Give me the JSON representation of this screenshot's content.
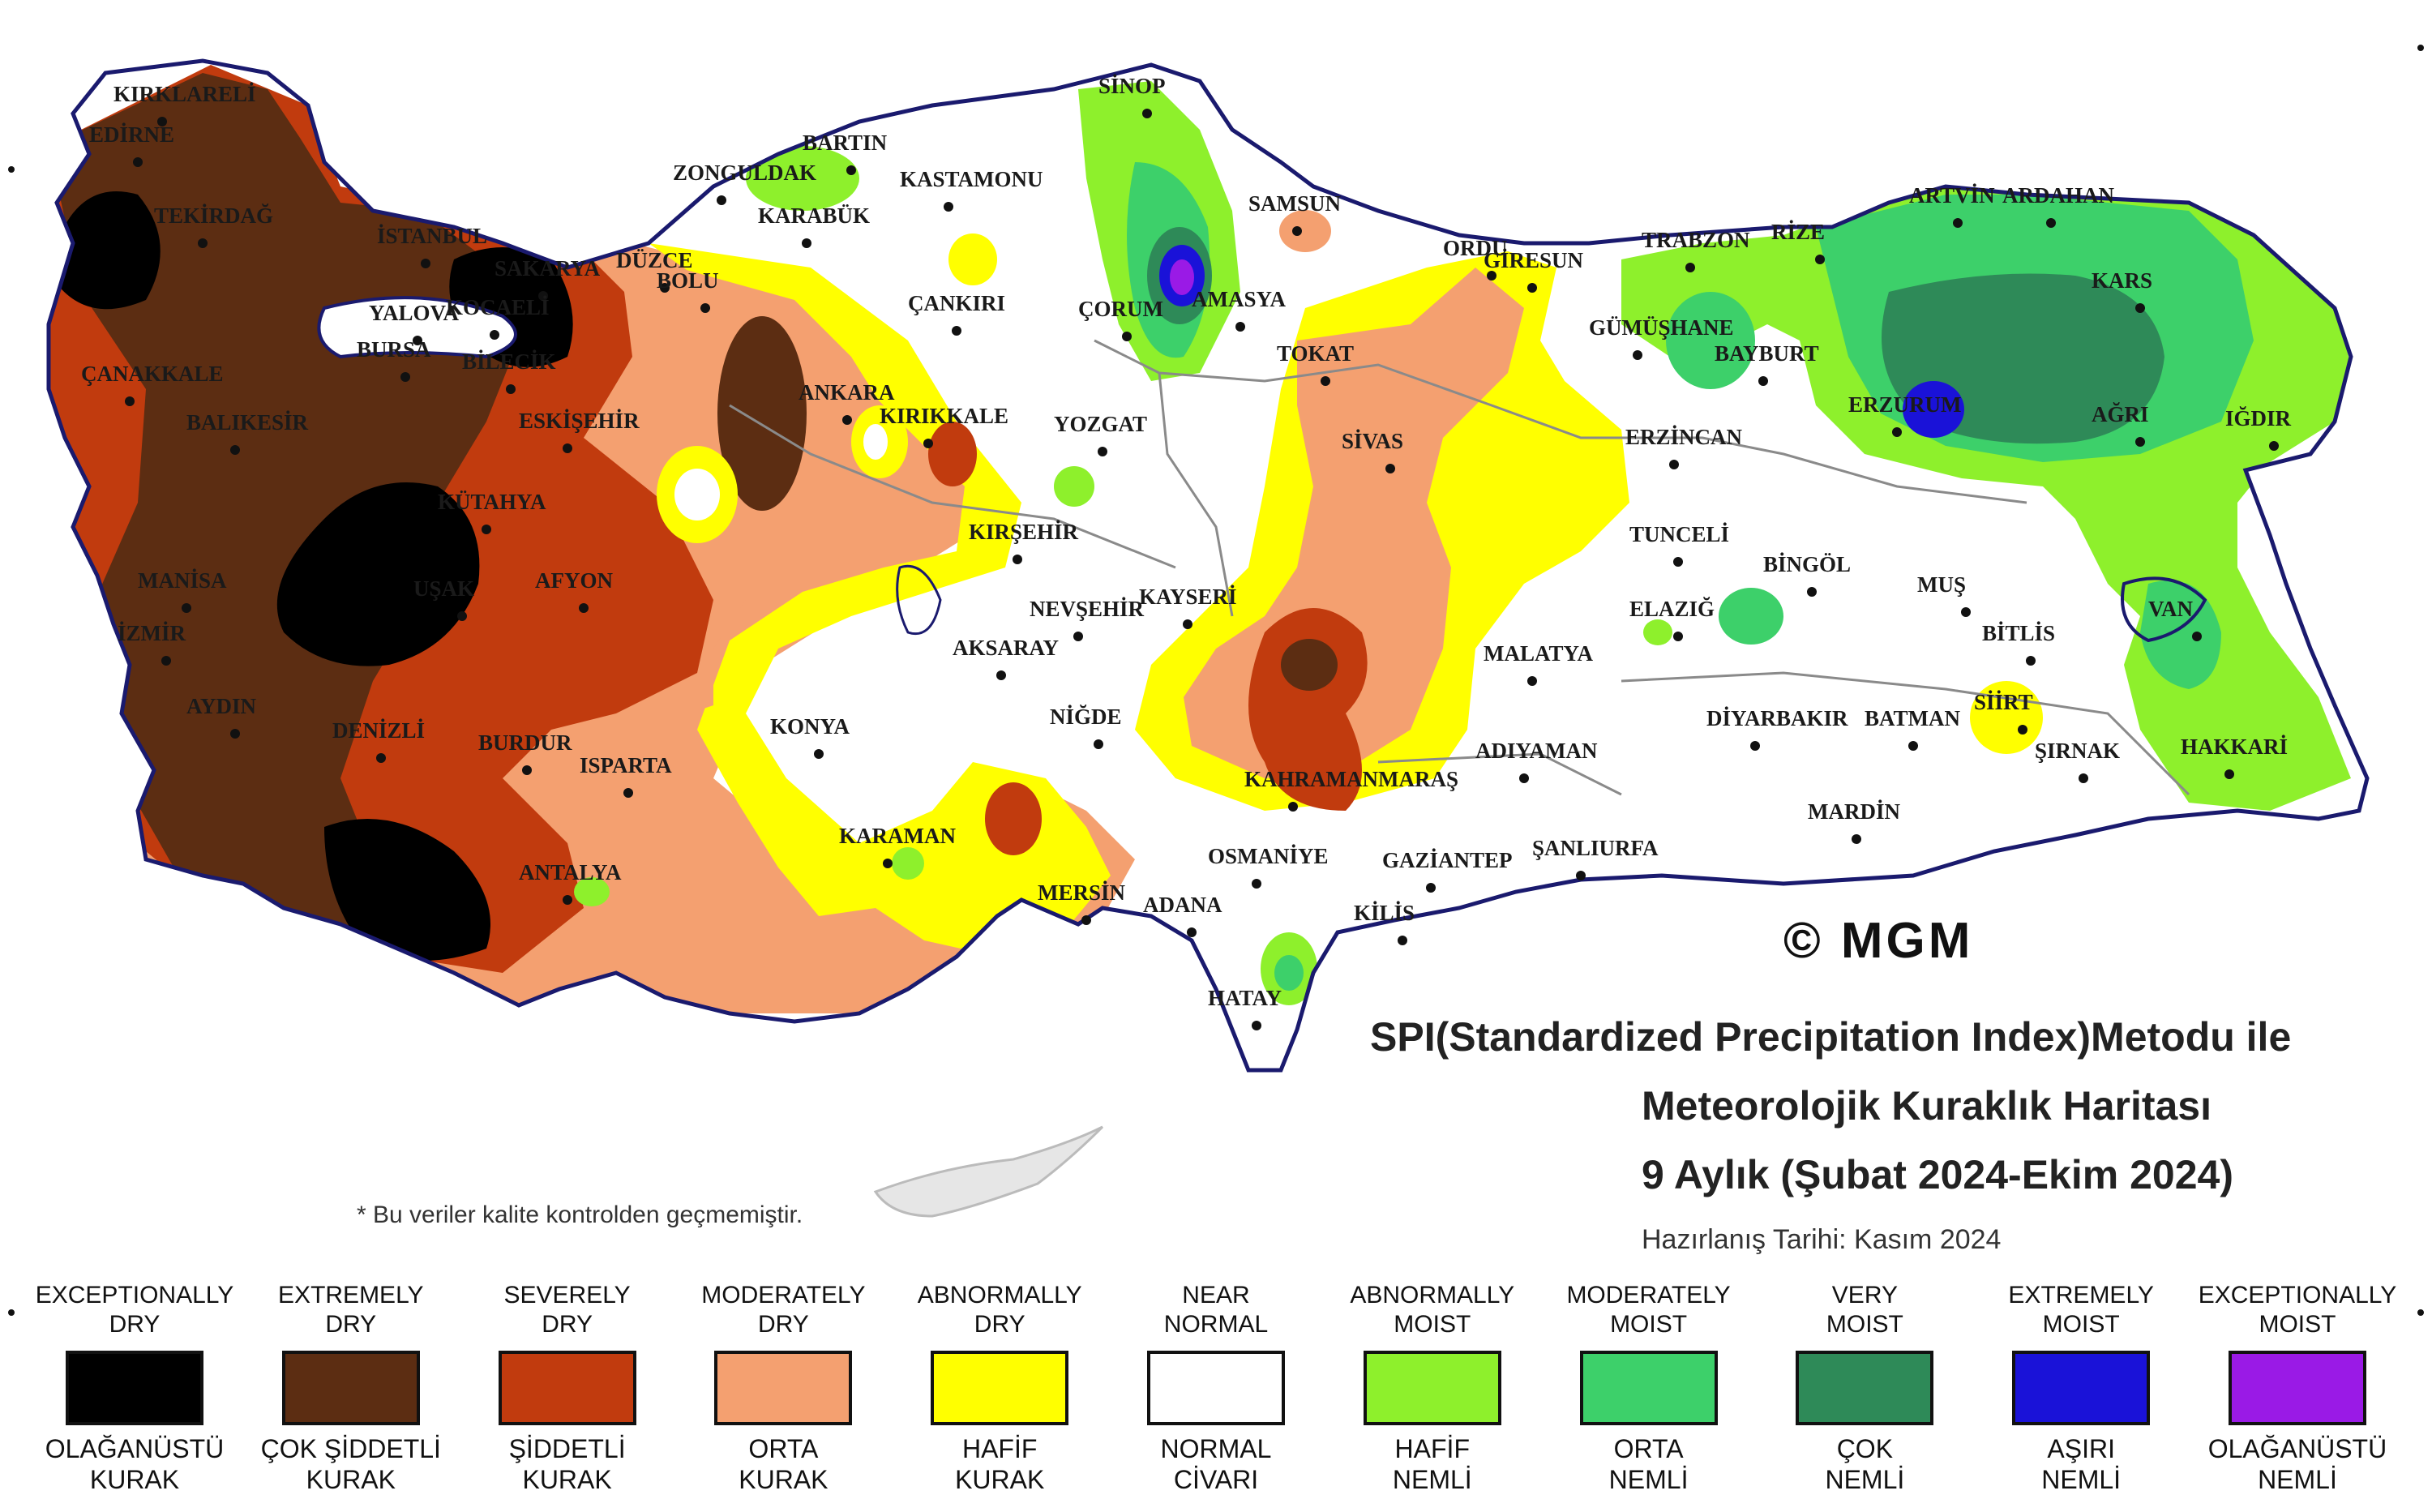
{
  "colors": {
    "exceptionally_dry": "#000000",
    "extremely_dry": "#5c2d12",
    "severely_dry": "#c13b0e",
    "moderately_dry": "#f4a070",
    "abnormally_dry": "#ffff00",
    "near_normal": "#ffffff",
    "abnormally_moist": "#8ef02c",
    "moderately_moist": "#3dd06a",
    "very_moist": "#2e8a58",
    "extremely_moist": "#1a12d8",
    "exceptionally_moist": "#9a1ae6",
    "border": "#1a1a6e",
    "region_lines": "#8a8a8a"
  },
  "title": {
    "line1": "SPI(Standardized Precipitation Index)Metodu ile",
    "line2": "Meteorolojik Kuraklık Haritası",
    "line3": "9 Aylık (Şubat 2024-Ekim 2024)"
  },
  "prepared_date": "Hazırlanış Tarihi: Kasım 2024",
  "footnote": "* Bu veriler kalite kontrolden geçmemiştir.",
  "copyright": "© MGM",
  "legend": [
    {
      "en": "EXCEPTIONALLY\nDRY",
      "tr": "OLAĞANÜSTÜ\nKURAK",
      "color_key": "exceptionally_dry"
    },
    {
      "en": "EXTREMELY\nDRY",
      "tr": "ÇOK ŞİDDETLİ\nKURAK",
      "color_key": "extremely_dry"
    },
    {
      "en": "SEVERELY\nDRY",
      "tr": "ŞİDDETLİ\nKURAK",
      "color_key": "severely_dry"
    },
    {
      "en": "MODERATELY\nDRY",
      "tr": "ORTA\nKURAK",
      "color_key": "moderately_dry"
    },
    {
      "en": "ABNORMALLY\nDRY",
      "tr": "HAFİF\nKURAK",
      "color_key": "abnormally_dry"
    },
    {
      "en": "NEAR\nNORMAL",
      "tr": "NORMAL\nCİVARI",
      "color_key": "near_normal"
    },
    {
      "en": "ABNORMALLY\nMOIST",
      "tr": "HAFİF\nNEMLİ",
      "color_key": "abnormally_moist"
    },
    {
      "en": "MODERATELY\nMOIST",
      "tr": "ORTA\nNEMLİ",
      "color_key": "moderately_moist"
    },
    {
      "en": "VERY\nMOIST",
      "tr": "ÇOK\nNEMLİ",
      "color_key": "very_moist"
    },
    {
      "en": "EXTREMELY\nMOIST",
      "tr": "AŞIRI\nNEMLİ",
      "color_key": "extremely_moist"
    },
    {
      "en": "EXCEPTIONALLY\nMOIST",
      "tr": "OLAĞANÜSTÜ\nNEMLİ",
      "color_key": "exceptionally_moist"
    }
  ],
  "cities": [
    "KIRKLARELİ",
    "EDİRNE",
    "TEKİRDAĞ",
    "İSTANBUL",
    "SAKARYA",
    "DÜZCE",
    "BOLU",
    "ZONGULDAK",
    "BARTIN",
    "KARABÜK",
    "KASTAMONU",
    "SİNOP",
    "SAMSUN",
    "ORDU",
    "GİRESUN",
    "TRABZON",
    "RİZE",
    "ARTVİN",
    "ARDAHAN",
    "KARS",
    "IĞDIR",
    "AĞRI",
    "ERZURUM",
    "BAYBURT",
    "GÜMÜŞHANE",
    "ERZİNCAN",
    "TUNCELİ",
    "BİNGÖL",
    "MUŞ",
    "BİTLİS",
    "VAN",
    "HAKKARİ",
    "ŞIRNAK",
    "SİİRT",
    "BATMAN",
    "MARDİN",
    "DİYARBAKIR",
    "ELAZIĞ",
    "MALATYA",
    "ADIYAMAN",
    "ŞANLIURFA",
    "KİLİS",
    "GAZİANTEP",
    "OSMANİYE",
    "HATAY",
    "ADANA",
    "MERSİN",
    "KARAMAN",
    "KONYA",
    "NİĞDE",
    "AKSARAY",
    "NEVŞEHİR",
    "KAYSERİ",
    "KIRŞEHİR",
    "KIRIKKALE",
    "ANKARA",
    "ÇANKIRI",
    "ÇORUM",
    "AMASYA",
    "TOKAT",
    "SİVAS",
    "YOZGAT",
    "KAHRAMANMARAŞ",
    "ESKİŞEHİR",
    "BİLECİK",
    "BURSA",
    "YALOVA",
    "KOCAELİ",
    "ÇANAKKALE",
    "BALIKESİR",
    "MANİSA",
    "İZMİR",
    "AYDIN",
    "DENİZLİ",
    "UŞAK",
    "KÜTAHYA",
    "AFYON",
    "BURDUR",
    "ISPARTA",
    "ANTALYA"
  ]
}
